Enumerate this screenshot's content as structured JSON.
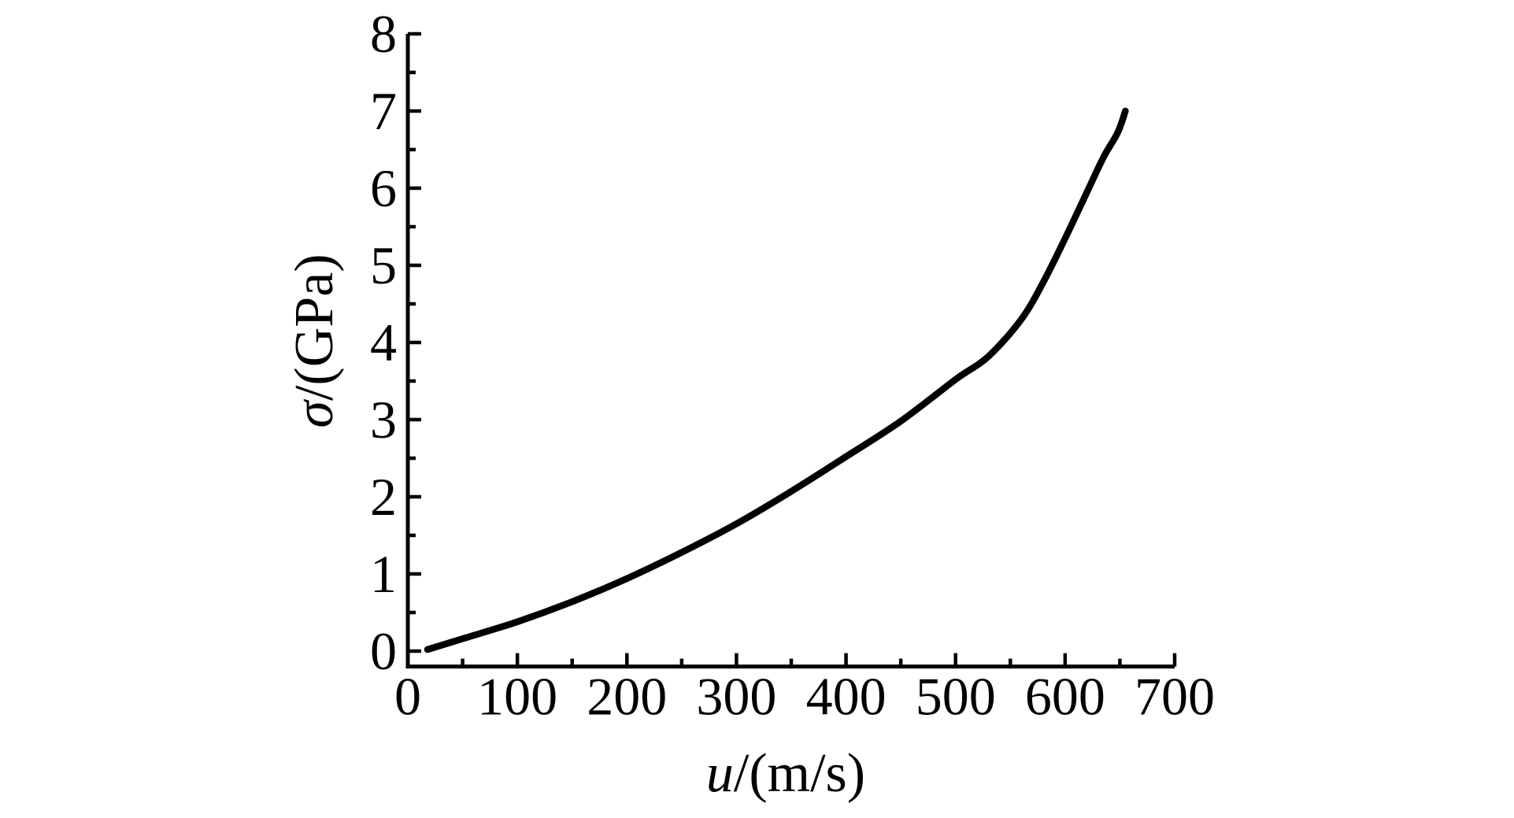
{
  "page": {
    "background": "#ffffff",
    "axis_color": "#000000",
    "text_color": "#000000"
  },
  "chart_data": {
    "type": "line",
    "title": "",
    "xlabel": {
      "symbol": "u",
      "units": "/(m/s)"
    },
    "ylabel": {
      "symbol": "σ",
      "units": "/(GPa)"
    },
    "xlim": [
      0,
      700
    ],
    "ylim": [
      -0.2,
      8
    ],
    "x_major_ticks": [
      0,
      100,
      200,
      300,
      400,
      500,
      600,
      700
    ],
    "x_minor_ticks": [
      50,
      150,
      250,
      350,
      450,
      550,
      650
    ],
    "y_major_ticks": [
      0,
      1,
      2,
      3,
      4,
      5,
      6,
      7,
      8
    ],
    "y_minor_ticks": [
      0.5,
      1.5,
      2.5,
      3.5,
      4.5,
      5.5,
      6.5,
      7.5
    ],
    "grid": false,
    "legend": null,
    "line_color": "#000000",
    "series": [
      {
        "name": "sigma-vs-u-curve",
        "points": [
          [
            18,
            0.02
          ],
          [
            50,
            0.16
          ],
          [
            100,
            0.38
          ],
          [
            150,
            0.64
          ],
          [
            200,
            0.94
          ],
          [
            250,
            1.28
          ],
          [
            300,
            1.65
          ],
          [
            350,
            2.07
          ],
          [
            400,
            2.52
          ],
          [
            450,
            2.98
          ],
          [
            500,
            3.52
          ],
          [
            530,
            3.82
          ],
          [
            560,
            4.3
          ],
          [
            580,
            4.78
          ],
          [
            600,
            5.35
          ],
          [
            620,
            5.95
          ],
          [
            635,
            6.4
          ],
          [
            648,
            6.72
          ],
          [
            655,
            7.0
          ]
        ]
      }
    ]
  }
}
